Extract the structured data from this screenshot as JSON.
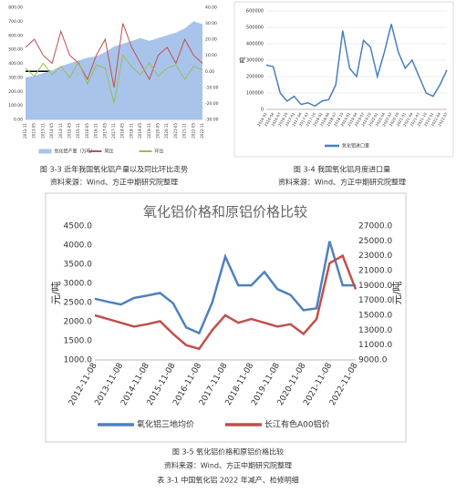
{
  "chart_data": [
    {
      "type": "line",
      "categories": [
        "2012-11",
        "2013-05",
        "2013-11",
        "2014-05",
        "2014-11",
        "2015-05",
        "2015-11",
        "2016-05",
        "2016-11",
        "2017-05",
        "2017-11",
        "2018-05",
        "2018-11",
        "2019-05",
        "2019-11",
        "2020-05",
        "2020-11",
        "2021-05",
        "2021-11",
        "2022-05",
        "2022-11"
      ],
      "series": [
        {
          "name": "氧化铝产量（万吨）",
          "color": "#a9c4eb",
          "style": "area",
          "values": [
            300,
            310,
            330,
            350,
            380,
            400,
            420,
            440,
            450,
            480,
            520,
            540,
            560,
            580,
            560,
            580,
            600,
            620,
            650,
            700,
            680
          ]
        },
        {
          "name": "同比",
          "color": "#c0504d",
          "axis": "y2",
          "values": [
            15,
            20,
            10,
            5,
            25,
            10,
            5,
            -5,
            10,
            20,
            -10,
            30,
            15,
            5,
            -5,
            10,
            15,
            5,
            20,
            10,
            5
          ]
        },
        {
          "name": "环比",
          "color": "#9bbb59",
          "axis": "y2",
          "values": [
            2,
            -3,
            5,
            -2,
            3,
            -4,
            6,
            -8,
            4,
            2,
            -20,
            10,
            3,
            -2,
            5,
            -3,
            2,
            4,
            -5,
            3,
            1
          ]
        }
      ],
      "ylim": [
        0,
        800
      ],
      "yticks": [
        {
          "value": 0,
          "label": "0.00"
        },
        {
          "value": 100,
          "label": "100.00"
        },
        {
          "value": 200,
          "label": "200.00"
        },
        {
          "value": 300,
          "label": "300.00"
        },
        {
          "value": 400,
          "label": "400.00"
        },
        {
          "value": 500,
          "label": "500.00"
        },
        {
          "value": 600,
          "label": "600.00"
        },
        {
          "value": 700,
          "label": "700.00"
        },
        {
          "value": 800,
          "label": "800.00"
        }
      ],
      "y2lim": [
        -30,
        40
      ],
      "y2ticks": [
        {
          "value": -30,
          "label": "-30.00"
        },
        {
          "value": -20,
          "label": "-20.00"
        },
        {
          "value": -10,
          "label": "-10.00"
        },
        {
          "value": 0,
          "label": "0.00"
        },
        {
          "value": 10,
          "label": "10.00"
        },
        {
          "value": 20,
          "label": "20.00"
        },
        {
          "value": 30,
          "label": "30.00"
        },
        {
          "value": 40,
          "label": "40.00"
        }
      ],
      "grid": false,
      "legend": "bottom"
    },
    {
      "type": "line",
      "y_label": "吨",
      "categories": [
        "2016-01",
        "2016-04",
        "2016-07",
        "2016-10",
        "2017-01",
        "2017-04",
        "2017-07",
        "2017-10",
        "2018-01",
        "2018-04",
        "2018-07",
        "2018-10",
        "2019-01",
        "2019-04",
        "2019-07",
        "2019-10",
        "2020-01",
        "2020-04",
        "2020-07",
        "2020-10",
        "2021-01",
        "2021-04",
        "2021-07",
        "2021-10",
        "2022-01",
        "2022-04",
        "2022-07"
      ],
      "series": [
        {
          "name": "氧化铝进口量",
          "color": "#4a7ebb",
          "values": [
            270000,
            260000,
            100000,
            50000,
            80000,
            30000,
            40000,
            20000,
            50000,
            60000,
            150000,
            480000,
            250000,
            200000,
            420000,
            380000,
            200000,
            350000,
            520000,
            350000,
            250000,
            300000,
            200000,
            100000,
            80000,
            150000,
            240000
          ]
        }
      ],
      "ylim": [
        0,
        600000
      ],
      "yticks": [
        0,
        100000,
        200000,
        300000,
        400000,
        500000,
        600000
      ],
      "grid": true,
      "legend": "bottom"
    },
    {
      "type": "line",
      "title": "氧化铝价格和原铝价格比较",
      "y_label": "元/吨",
      "y2_label": "元/吨",
      "categories": [
        "2012-11-08",
        null,
        "2013-11-08",
        null,
        "2014-11-08",
        null,
        "2015-11-08",
        null,
        "2016-11-08",
        null,
        "2017-11-08",
        null,
        "2018-11-08",
        null,
        "2019-11-08",
        null,
        "2020-11-08",
        null,
        "2021-11-08",
        null,
        "2022-11-08"
      ],
      "series": [
        {
          "name": "氧化铝三地均价",
          "color": "#4f81bd",
          "values": [
            2600,
            2520,
            2450,
            2620,
            2680,
            2750,
            2480,
            1850,
            1700,
            2500,
            3700,
            2950,
            2950,
            3300,
            2850,
            2700,
            2300,
            2350,
            4100,
            2950,
            2950
          ]
        },
        {
          "name": "长江有色A00铝价",
          "color": "#c0504d",
          "axis": "y2",
          "values": [
            15000,
            14500,
            14000,
            13500,
            13800,
            14200,
            12500,
            11000,
            10500,
            13000,
            15000,
            14000,
            14500,
            14000,
            13500,
            13800,
            12500,
            14500,
            22000,
            23000,
            18500
          ]
        }
      ],
      "ylim": [
        1000,
        4500
      ],
      "yticks": [
        {
          "value": 1000,
          "label": "1000.0"
        },
        {
          "value": 1500,
          "label": "1500.0"
        },
        {
          "value": 2000,
          "label": "2000.0"
        },
        {
          "value": 2500,
          "label": "2500.0"
        },
        {
          "value": 3000,
          "label": "3000.0"
        },
        {
          "value": 3500,
          "label": "3500.0"
        },
        {
          "value": 4000,
          "label": "4000.0"
        },
        {
          "value": 4500,
          "label": "4500.0"
        }
      ],
      "y2lim": [
        9000,
        27000
      ],
      "y2ticks": [
        {
          "value": 9000,
          "label": "9000.0"
        },
        {
          "value": 11000,
          "label": "11000.0"
        },
        {
          "value": 13000,
          "label": "13000.0"
        },
        {
          "value": 15000,
          "label": "15000.0"
        },
        {
          "value": 17000,
          "label": "17000.0"
        },
        {
          "value": 19000,
          "label": "19000.0"
        },
        {
          "value": 21000,
          "label": "21000.0"
        },
        {
          "value": 23000,
          "label": "23000.0"
        },
        {
          "value": 25000,
          "label": "25000.0"
        },
        {
          "value": 27000,
          "label": "27000.0"
        }
      ],
      "grid": false,
      "legend": "bottom"
    }
  ],
  "captions": {
    "fig3_3": "图 3-3 近年我国氧化铝产量以及同比环比走势",
    "fig3_3_source": "资料来源：Wind、方正中期研究院整理",
    "fig3_4": "图 3-4 我国氧化铝月度进口量",
    "fig3_4_source": "资料来源：Wind、方正中期研究院整理",
    "fig3_5": "图 3-5 氧化铝价格和原铝价格比较",
    "fig3_5_source": "资料来源：Wind、方正中期研究院整理",
    "table3_1": "表 3-1 中国氧化铝 2022 年减产、检修明细"
  }
}
